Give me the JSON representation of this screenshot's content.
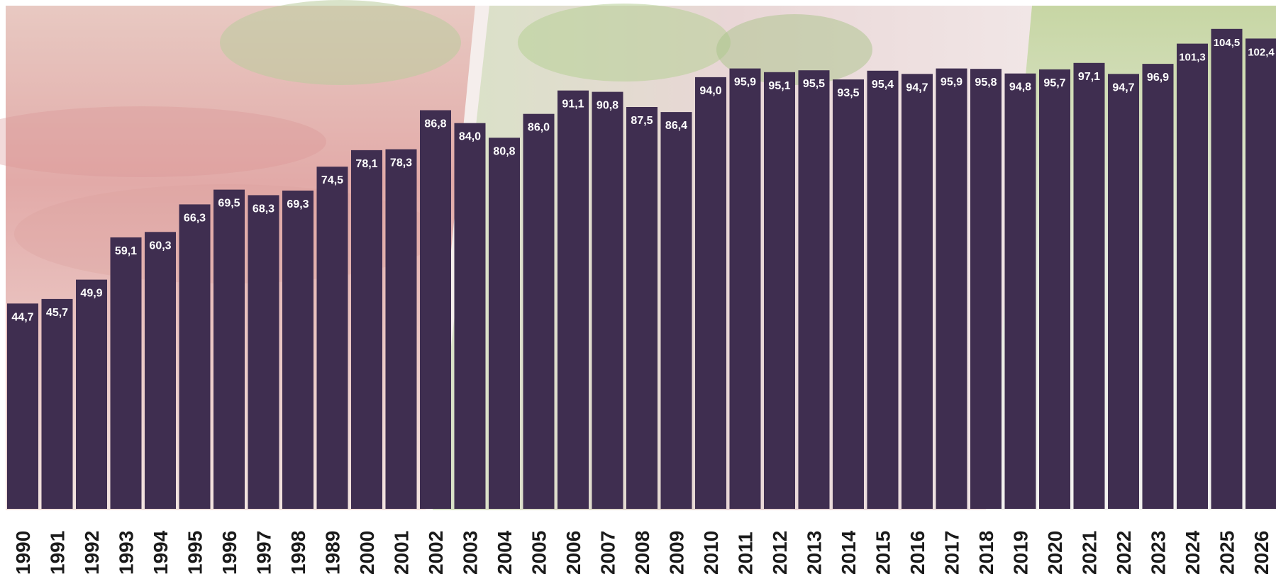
{
  "colors": {
    "bar": "#3f2e50",
    "label_text": "#ffffff",
    "axis_text": "#1a1a1a",
    "background_meat": "#e3b7b4",
    "background_herb": "#c9d8b0",
    "background_pale": "#efe7e2"
  },
  "chart_data": {
    "type": "bar",
    "title": "",
    "xlabel": "",
    "ylabel": "",
    "ylim": [
      0,
      108
    ],
    "grid": false,
    "legend": "none",
    "value_format": "decimal comma, 1 decimal",
    "categories": [
      "1990",
      "1991",
      "1992",
      "1993",
      "1994",
      "1995",
      "1996",
      "1997",
      "1998",
      "1989",
      "2000",
      "2001",
      "2002",
      "2003",
      "2004",
      "2005",
      "2006",
      "2007",
      "2008",
      "2009",
      "2010",
      "2011",
      "2012",
      "2013",
      "2014",
      "2015",
      "2016",
      "2017",
      "2018",
      "2019",
      "2020",
      "2021",
      "2022",
      "2023",
      "2024",
      "2025",
      "2026"
    ],
    "values": [
      44.7,
      45.7,
      49.9,
      59.1,
      60.3,
      66.3,
      69.5,
      68.3,
      69.3,
      74.5,
      78.1,
      78.3,
      86.8,
      84.0,
      80.8,
      86.0,
      91.1,
      90.8,
      87.5,
      86.4,
      94.0,
      95.9,
      95.1,
      95.5,
      93.5,
      95.4,
      94.7,
      95.9,
      95.8,
      94.8,
      95.7,
      97.1,
      94.7,
      96.9,
      101.3,
      104.5,
      102.4
    ],
    "labels": [
      "44,7",
      "45,7",
      "49,9",
      "59,1",
      "60,3",
      "66,3",
      "69,5",
      "68,3",
      "69,3",
      "74,5",
      "78,1",
      "78,3",
      "86,8",
      "84,0",
      "80,8",
      "86,0",
      "91,1",
      "90,8",
      "87,5",
      "86,4",
      "94,0",
      "95,9",
      "95,1",
      "95,5",
      "93,5",
      "95,4",
      "94,7",
      "95,9",
      "95,8",
      "94,8",
      "95,7",
      "97,1",
      "94,7",
      "96,9",
      "101,3",
      "104,5",
      "102,4"
    ]
  }
}
